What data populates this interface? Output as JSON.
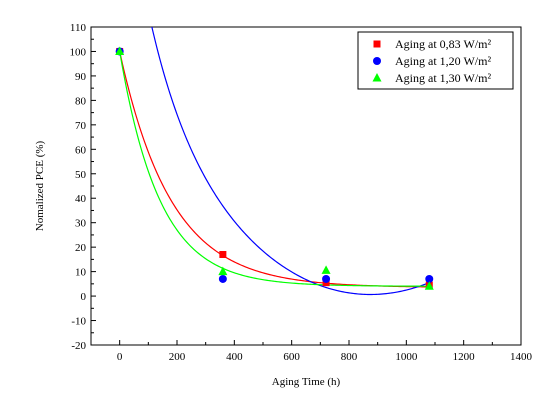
{
  "chart_data": {
    "type": "scatter",
    "title": "",
    "xlabel": "Aging Time (h)",
    "ylabel": "Nomalized PCE (%)",
    "xlim": [
      -100,
      1400
    ],
    "ylim": [
      -20,
      110
    ],
    "x_ticks": [
      0,
      200,
      400,
      600,
      800,
      1000,
      1200,
      1400
    ],
    "y_ticks": [
      -20,
      -10,
      0,
      10,
      20,
      30,
      40,
      50,
      60,
      70,
      80,
      90,
      100,
      110
    ],
    "grid": false,
    "legend_position": "top-right",
    "series": [
      {
        "name": "Aging at 0,83 W/m²",
        "color": "#ff0000",
        "marker": "square",
        "x": [
          0,
          360,
          720,
          1080
        ],
        "y": [
          100,
          17,
          5.5,
          4.5
        ],
        "fit": {
          "a": 96.5,
          "tau": 180,
          "c": 3.5
        }
      },
      {
        "name": "Aging at 1,20 W/m²",
        "color": "#0000ff",
        "marker": "circle",
        "x": [
          0,
          360,
          720,
          1080
        ],
        "y": [
          100,
          7,
          7,
          7
        ],
        "fit": {
          "a": 103.9,
          "tau": 133,
          "c": 0.5,
          "b": 0.000113,
          "x0": 870
        }
      },
      {
        "name": "Aging at 1,30 W/m²",
        "color": "#00ff00",
        "marker": "triangle",
        "x": [
          0,
          360,
          720,
          1080
        ],
        "y": [
          100,
          10,
          10.5,
          4
        ],
        "fit": {
          "a": 96,
          "tau": 140,
          "c": 4
        }
      }
    ]
  }
}
